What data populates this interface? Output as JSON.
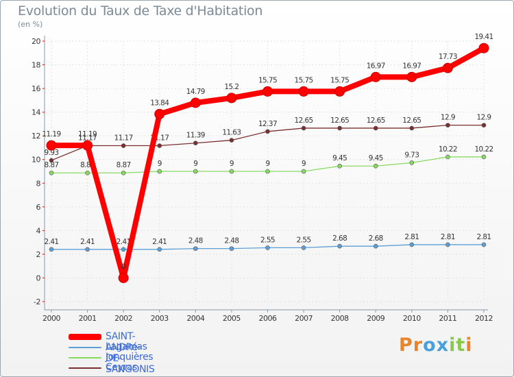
{
  "chart_data": {
    "type": "line",
    "title": "Evolution du Taux de Taxe d'Habitation",
    "ylabel": "(en %)",
    "xlabel": "",
    "categories": [
      "2000",
      "2001",
      "2002",
      "2003",
      "2004",
      "2005",
      "2006",
      "2007",
      "2008",
      "2009",
      "2010",
      "2011",
      "2012"
    ],
    "yticks": [
      "-2",
      "0",
      "2",
      "4",
      "6",
      "8",
      "10",
      "12",
      "14",
      "16",
      "18",
      "20"
    ],
    "ylim": [
      -2,
      20
    ],
    "grid": true,
    "legend_position": "bottom-left",
    "series": [
      {
        "name": "Lagamas",
        "color": "#5b9fd6",
        "values": [
          2.41,
          2.41,
          2.41,
          2.41,
          2.48,
          2.48,
          2.55,
          2.55,
          2.68,
          2.68,
          2.81,
          2.81,
          2.81
        ],
        "labels": [
          "2.41",
          "2.41",
          "2.41",
          "2.41",
          "2.48",
          "2.48",
          "2.55",
          "2.55",
          "2.68",
          "2.68",
          "2.81",
          "2.81",
          "2.81"
        ]
      },
      {
        "name": "Jonquières",
        "color": "#88d960",
        "values": [
          8.87,
          8.87,
          8.87,
          9,
          9,
          9,
          9,
          9,
          9.45,
          9.45,
          9.73,
          10.22,
          10.22
        ],
        "labels": [
          "8.87",
          "8.87",
          "8.87",
          "9",
          "9",
          "9",
          "9",
          "9",
          "9.45",
          "9.45",
          "9.73",
          "10.22",
          "10.22"
        ]
      },
      {
        "name": "Ceyras",
        "color": "#7a2e2e",
        "values": [
          9.93,
          11.17,
          11.17,
          11.17,
          11.39,
          11.63,
          12.37,
          12.65,
          12.65,
          12.65,
          12.65,
          12.9,
          12.9
        ],
        "labels": [
          "9.93",
          "11.17",
          "11.17",
          "11.17",
          "11.39",
          "11.63",
          "12.37",
          "12.65",
          "12.65",
          "12.65",
          "12.65",
          "12.9",
          "12.9"
        ]
      },
      {
        "name": "SAINT-ANDRé-DE-SANGONIS",
        "color": "#ff0000",
        "values": [
          11.19,
          11.19,
          0,
          13.84,
          14.79,
          15.2,
          15.75,
          15.75,
          15.75,
          16.97,
          16.97,
          17.73,
          19.41
        ],
        "labels": [
          "11.19",
          "11.19",
          "0",
          "13.84",
          "14.79",
          "15.2",
          "15.75",
          "15.75",
          "15.75",
          "16.97",
          "16.97",
          "17.73",
          "19.41"
        ]
      }
    ]
  },
  "legend": [
    {
      "label": "SAINT-ANDRé-DE-SANGONIS",
      "color": "#ff0000",
      "text_color": "#3b6bd6"
    },
    {
      "label": "Lagamas",
      "color": "#5b9fd6",
      "text_color": "#3b6bd6"
    },
    {
      "label": "Jonquières",
      "color": "#88d960",
      "text_color": "#3b6bd6"
    },
    {
      "label": "Ceyras",
      "color": "#7a2e2e",
      "text_color": "#3b6bd6"
    }
  ],
  "logo": {
    "letters": [
      "P",
      "r",
      "o",
      "x",
      "i",
      "t",
      "i"
    ],
    "colors": [
      "#e8842a",
      "#e8842a",
      "#4aa0dc",
      "#4aa0dc",
      "#88c84a",
      "#88c84a",
      "#e8842a"
    ]
  }
}
